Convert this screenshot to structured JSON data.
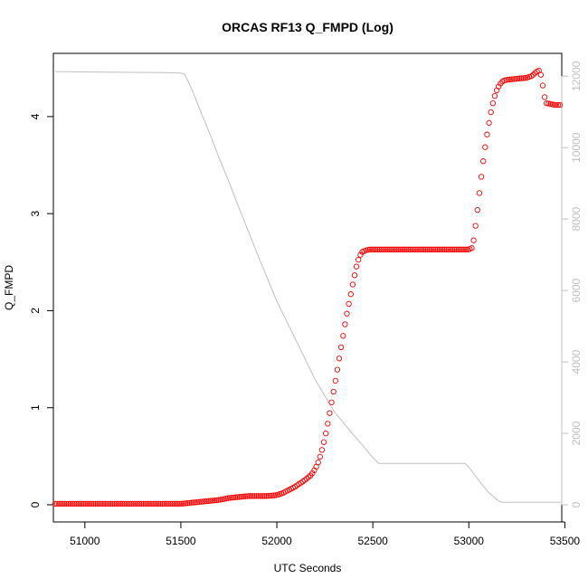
{
  "chart_data": {
    "type": "scatter",
    "title": "ORCAS RF13 Q_FMPD (Log)",
    "xlabel": "UTC Seconds",
    "ylabel": "Q_FMPD",
    "y2label": "",
    "xlim": [
      50836,
      53484
    ],
    "ylim": [
      0,
      4.6
    ],
    "y2lim": [
      0,
      12500
    ],
    "x_ticks": [
      51000,
      51500,
      52000,
      52500,
      53000,
      53500
    ],
    "y_ticks": [
      0,
      1,
      2,
      3,
      4
    ],
    "y2_ticks": [
      0,
      2000,
      4000,
      6000,
      8000,
      10000,
      12000
    ],
    "grid": false,
    "legend": "none",
    "colors": {
      "points": "#ff0000",
      "altitude": "#c0c0c0",
      "axis_right": "#c0c0c0",
      "axis_left": "#000000"
    },
    "series": [
      {
        "axis": "left",
        "style": "open-circles",
        "x": [
          50845,
          51000,
          51200,
          51400,
          51500,
          51550,
          51600,
          51650,
          51700,
          51750,
          51800,
          51850,
          51900,
          51950,
          52000,
          52030,
          52060,
          52090,
          52120,
          52150,
          52180,
          52200,
          52220,
          52240,
          52260,
          52280,
          52300,
          52320,
          52340,
          52360,
          52380,
          52400,
          52420,
          52440,
          52460,
          52480,
          52500,
          52520,
          52540,
          52600,
          52700,
          52800,
          52900,
          52950,
          52980,
          53000,
          53020,
          53040,
          53060,
          53080,
          53100,
          53120,
          53140,
          53160,
          53180,
          53200,
          53250,
          53300,
          53330,
          53350,
          53370,
          53380,
          53400,
          53450,
          53480
        ],
        "y": [
          0.01,
          0.01,
          0.01,
          0.01,
          0.01,
          0.02,
          0.03,
          0.04,
          0.05,
          0.07,
          0.08,
          0.09,
          0.09,
          0.09,
          0.1,
          0.12,
          0.15,
          0.18,
          0.22,
          0.26,
          0.31,
          0.37,
          0.46,
          0.6,
          0.78,
          1.0,
          1.22,
          1.45,
          1.68,
          1.92,
          2.12,
          2.32,
          2.5,
          2.6,
          2.62,
          2.63,
          2.63,
          2.63,
          2.63,
          2.63,
          2.63,
          2.63,
          2.63,
          2.63,
          2.63,
          2.63,
          2.65,
          2.95,
          3.3,
          3.62,
          3.88,
          4.1,
          4.25,
          4.33,
          4.37,
          4.38,
          4.39,
          4.4,
          4.42,
          4.46,
          4.48,
          4.38,
          4.14,
          4.12,
          4.12
        ]
      },
      {
        "axis": "right",
        "style": "line",
        "x": [
          50845,
          51000,
          51200,
          51400,
          51500,
          51520,
          51560,
          51600,
          51650,
          51700,
          51750,
          51800,
          51900,
          52000,
          52100,
          52200,
          52300,
          52400,
          52450,
          52500,
          52530,
          52600,
          52700,
          52800,
          52900,
          52980,
          53000,
          53050,
          53100,
          53150,
          53170,
          53200,
          53300,
          53330,
          53350,
          53400,
          53450,
          53480
        ],
        "y": [
          12130,
          12120,
          12110,
          12100,
          12090,
          12050,
          11600,
          11050,
          10400,
          9700,
          9050,
          8350,
          7000,
          5700,
          4600,
          3500,
          2600,
          1950,
          1650,
          1320,
          1160,
          1160,
          1160,
          1160,
          1160,
          1160,
          1050,
          700,
          360,
          130,
          70,
          70,
          70,
          70,
          70,
          70,
          70,
          70
        ]
      }
    ]
  }
}
